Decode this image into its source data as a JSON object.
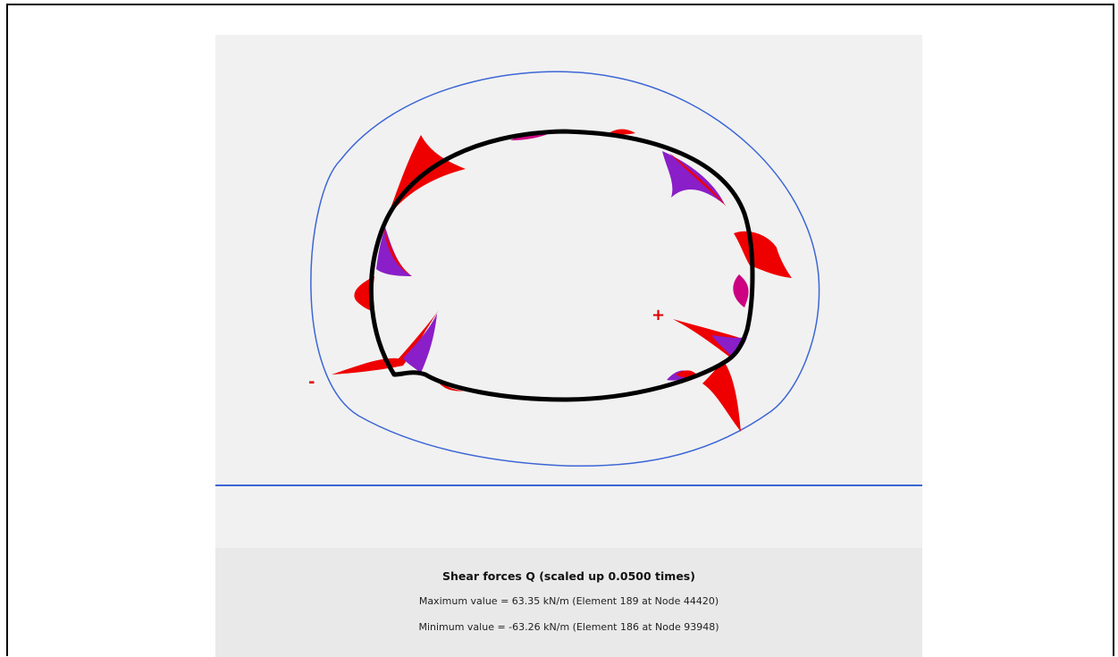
{
  "results": {
    "title": "Shear forces Q (scaled up 0.0500 times)",
    "max_line": "Maximum value = 63.35 kN/m (Element 189 at Node 44420)",
    "min_line": "Minimum value = -63.26 kN/m (Element 186 at Node 93948)"
  },
  "plot": {
    "positive_sign": "+",
    "negative_sign": "-",
    "colors": {
      "lining": "#000000",
      "boundary": "#3c66d6",
      "positive_fill": "#ee0000",
      "negative_fill": "#8a1ec8",
      "background": "#f1f1f1",
      "info_background": "#e9e9e9"
    }
  }
}
